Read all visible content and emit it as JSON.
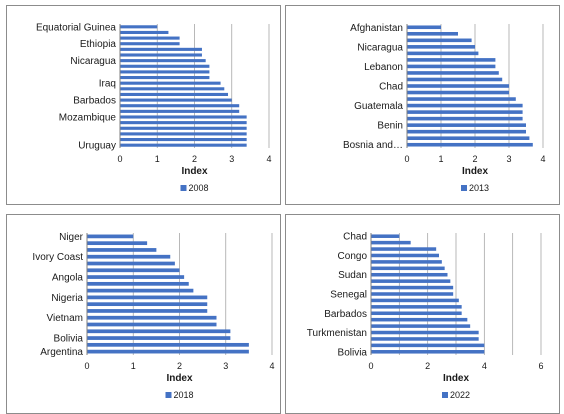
{
  "chart_data": [
    {
      "type": "bar",
      "orientation": "horizontal",
      "categories": [
        "Uruguay",
        "",
        "",
        "",
        "",
        "Mozambique",
        "",
        "",
        "Barbados",
        "",
        "",
        "Iraq",
        "",
        "",
        "",
        "Nicaragua",
        "",
        "",
        "Ethiopia",
        "",
        "",
        "Equatorial Guinea"
      ],
      "series": [
        {
          "name": "2008",
          "values": [
            3.4,
            3.4,
            3.4,
            3.4,
            3.4,
            3.4,
            3.2,
            3.2,
            3.0,
            2.9,
            2.8,
            2.7,
            2.4,
            2.4,
            2.4,
            2.3,
            2.2,
            2.2,
            1.6,
            1.6,
            1.3,
            1.0
          ]
        }
      ],
      "xlabel": "Index",
      "xlim": [
        0,
        4
      ],
      "xticks": [
        "0",
        "1",
        "2",
        "3",
        "4"
      ],
      "grid": true,
      "legend": "bottom",
      "color": "#4472c4"
    },
    {
      "type": "bar",
      "orientation": "horizontal",
      "categories": [
        "Bosnia and…",
        "",
        "",
        "Benin",
        "",
        "",
        "Guatemala",
        "",
        "",
        "Chad",
        "",
        "",
        "Lebanon",
        "",
        "",
        "Nicaragua",
        "",
        "",
        "Afghanistan"
      ],
      "series": [
        {
          "name": "2013",
          "values": [
            3.7,
            3.6,
            3.5,
            3.5,
            3.4,
            3.4,
            3.4,
            3.2,
            3.0,
            3.0,
            2.8,
            2.7,
            2.6,
            2.6,
            2.1,
            2.0,
            1.9,
            1.5,
            1.0
          ]
        }
      ],
      "xlabel": "Index",
      "xlim": [
        0,
        4
      ],
      "xticks": [
        "0",
        "1",
        "2",
        "3",
        "4"
      ],
      "grid": true,
      "legend": "bottom",
      "color": "#4472c4"
    },
    {
      "type": "bar",
      "orientation": "horizontal",
      "categories": [
        "Argentina",
        "",
        "Bolivia",
        "",
        "",
        "Vietnam",
        "",
        "",
        "Nigeria",
        "",
        "",
        "Angola",
        "",
        "",
        "Ivory Coast",
        "",
        "",
        "Niger"
      ],
      "series": [
        {
          "name": "2018",
          "values": [
            3.5,
            3.5,
            3.1,
            3.1,
            2.8,
            2.8,
            2.6,
            2.6,
            2.6,
            2.3,
            2.2,
            2.1,
            2.0,
            1.9,
            1.8,
            1.5,
            1.3,
            1.0
          ]
        }
      ],
      "xlabel": "Index",
      "xlim": [
        0,
        4
      ],
      "xticks": [
        "0",
        "1",
        "2",
        "3",
        "4"
      ],
      "grid": true,
      "legend": "bottom",
      "color": "#4472c4"
    },
    {
      "type": "bar",
      "orientation": "horizontal",
      "categories": [
        "Bolivia",
        "",
        "",
        "Turkmenistan",
        "",
        "",
        "Barbados",
        "",
        "",
        "Senegal",
        "",
        "",
        "Sudan",
        "",
        "",
        "Congo",
        "",
        "",
        "Chad"
      ],
      "series": [
        {
          "name": "2022",
          "values": [
            4.0,
            4.0,
            3.8,
            3.8,
            3.5,
            3.4,
            3.2,
            3.2,
            3.1,
            2.9,
            2.9,
            2.8,
            2.7,
            2.6,
            2.5,
            2.4,
            2.3,
            1.4,
            1.0
          ]
        }
      ],
      "xlabel": "Index",
      "xlim": [
        0,
        6
      ],
      "xticks": [
        "0",
        "2",
        "4",
        "6"
      ],
      "grid": true,
      "legend": "bottom",
      "color": "#4472c4"
    }
  ]
}
